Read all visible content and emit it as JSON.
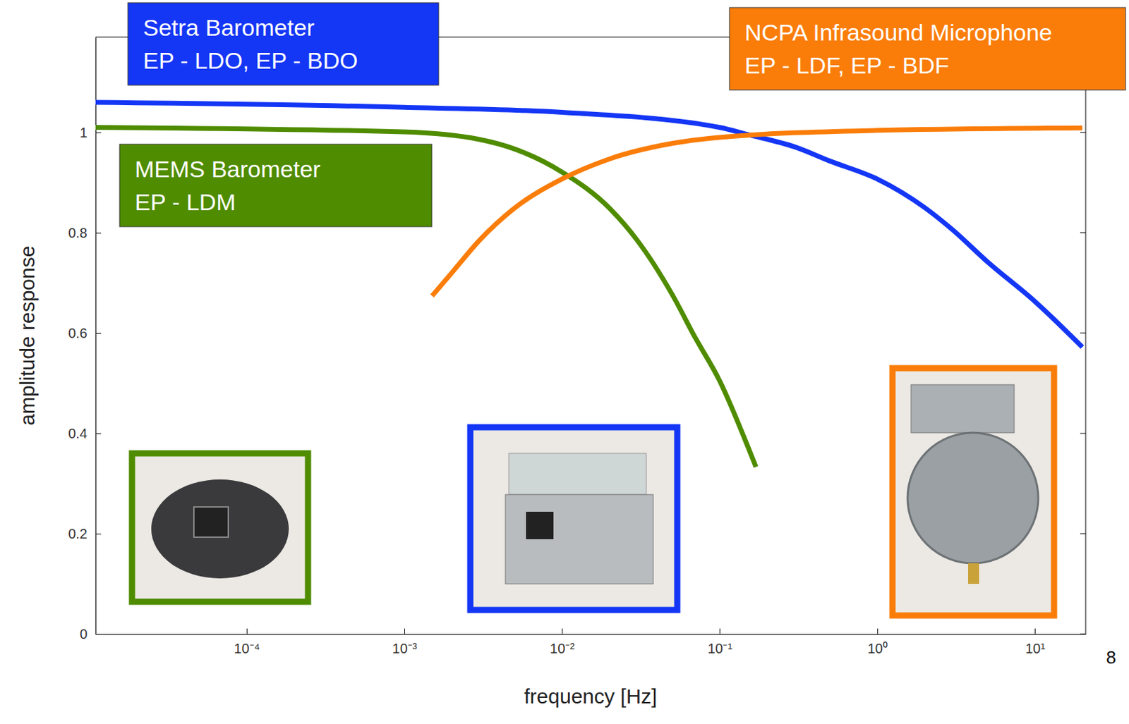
{
  "chart_data": {
    "type": "line",
    "x_label": "frequency [Hz]",
    "y_label": "amplitude response",
    "log": "x",
    "xlim": [
      1.1e-05,
      21
    ],
    "ylim": [
      0,
      1.19
    ],
    "xticks": [
      {
        "value": 0.0001,
        "label": "10⁻⁴"
      },
      {
        "value": 0.001,
        "label": "10⁻³"
      },
      {
        "value": 0.01,
        "label": "10⁻²"
      },
      {
        "value": 0.1,
        "label": "10⁻¹"
      },
      {
        "value": 1,
        "label": "10⁰"
      },
      {
        "value": 10,
        "label": "10¹"
      }
    ],
    "yticks": [
      0,
      0.2,
      0.4,
      0.6,
      0.8,
      1
    ],
    "grid": false,
    "annotations": [
      "8"
    ],
    "series": [
      {
        "name": "Setra Barometer",
        "label": "EP - LDO, EP - BDO",
        "color": "#1436f5",
        "x": [
          1.1e-05,
          0.001,
          0.01,
          0.1,
          0.15,
          0.3,
          0.5,
          1,
          2,
          3,
          5,
          10,
          20
        ],
        "values": [
          1.06,
          1.05,
          1.04,
          1.01,
          0.996,
          0.971,
          0.943,
          0.907,
          0.85,
          0.806,
          0.742,
          0.663,
          0.572
        ]
      },
      {
        "name": "MEMS Barometer",
        "label": "EP - LDM",
        "color": "#4f8c00",
        "x": [
          1.1e-05,
          0.001,
          0.003,
          0.005,
          0.01,
          0.02,
          0.03,
          0.05,
          0.07,
          0.1,
          0.15,
          0.17
        ],
        "values": [
          1.01,
          1.001,
          0.986,
          0.967,
          0.921,
          0.849,
          0.785,
          0.677,
          0.591,
          0.505,
          0.376,
          0.333
        ]
      },
      {
        "name": "NCPA Infrasound Microphone",
        "label": "EP - LDF, EP - BDF",
        "color": "#fa7d0a",
        "x": [
          0.0015,
          0.002,
          0.003,
          0.005,
          0.01,
          0.02,
          0.05,
          0.1,
          1,
          20
        ],
        "values": [
          0.674,
          0.72,
          0.785,
          0.849,
          0.907,
          0.947,
          0.978,
          0.99,
          1.004,
          1.009
        ]
      }
    ]
  }
}
